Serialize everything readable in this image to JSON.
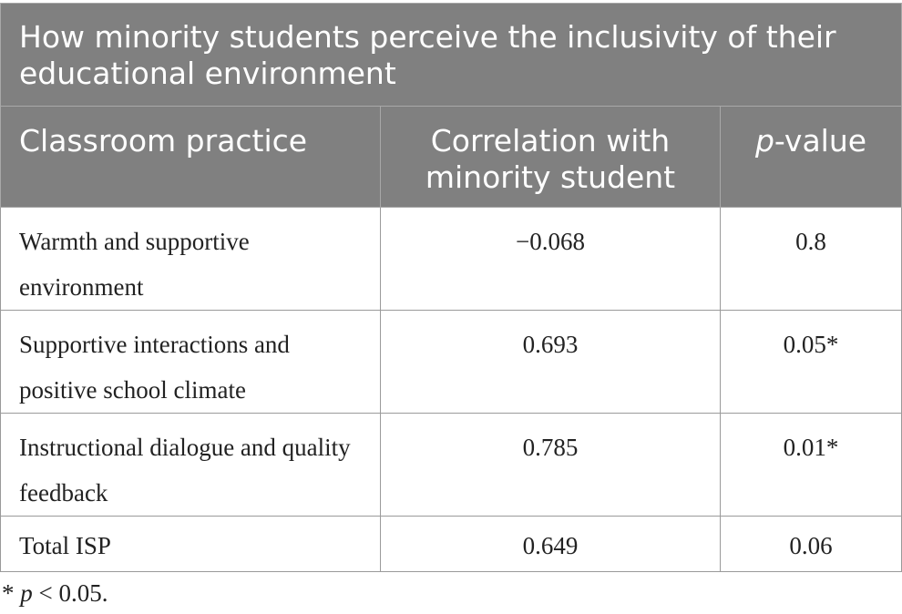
{
  "table": {
    "title": "How minority students perceive the inclusivity of their educational environment",
    "headers": {
      "col1": "Classroom practice",
      "col2": "Correlation with minority student",
      "col3_italic": "p",
      "col3_rest": "-value"
    },
    "rows": [
      {
        "practice": "Warmth and supportive environment",
        "correlation": "−0.068",
        "p_value": "0.8"
      },
      {
        "practice": "Supportive interactions and positive school climate",
        "correlation": "0.693",
        "p_value": "0.05*"
      },
      {
        "practice": "Instructional dialogue and quality feedback",
        "correlation": "0.785",
        "p_value": "0.01*"
      },
      {
        "practice": "Total ISP",
        "correlation": "0.649",
        "p_value": "0.06"
      }
    ]
  },
  "footnote": {
    "marker": "* ",
    "italic": "p",
    "rest": " < 0.05."
  }
}
